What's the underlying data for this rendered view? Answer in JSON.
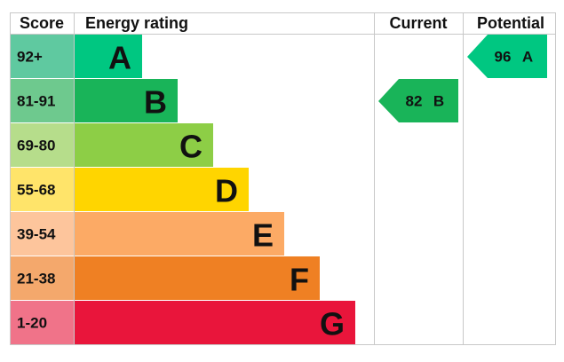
{
  "header": {
    "score": "Score",
    "rating": "Energy rating",
    "current": "Current",
    "potential": "Potential"
  },
  "bands": [
    {
      "score": "92+",
      "letter": "A",
      "color": "#00c781",
      "score_color": "#5fc9a0"
    },
    {
      "score": "81-91",
      "letter": "B",
      "color": "#19b459",
      "score_color": "#6ec98e"
    },
    {
      "score": "69-80",
      "letter": "C",
      "color": "#8dce46",
      "score_color": "#b6dd8b"
    },
    {
      "score": "55-68",
      "letter": "D",
      "color": "#ffd500",
      "score_color": "#ffe46a"
    },
    {
      "score": "39-54",
      "letter": "E",
      "color": "#fcaa65",
      "score_color": "#fdc59c"
    },
    {
      "score": "21-38",
      "letter": "F",
      "color": "#ef8023",
      "score_color": "#f4a86c"
    },
    {
      "score": "1-20",
      "letter": "G",
      "color": "#e9153b",
      "score_color": "#f07389"
    }
  ],
  "current": {
    "value": 82,
    "letter": "B"
  },
  "potential": {
    "value": 96,
    "letter": "A"
  }
}
